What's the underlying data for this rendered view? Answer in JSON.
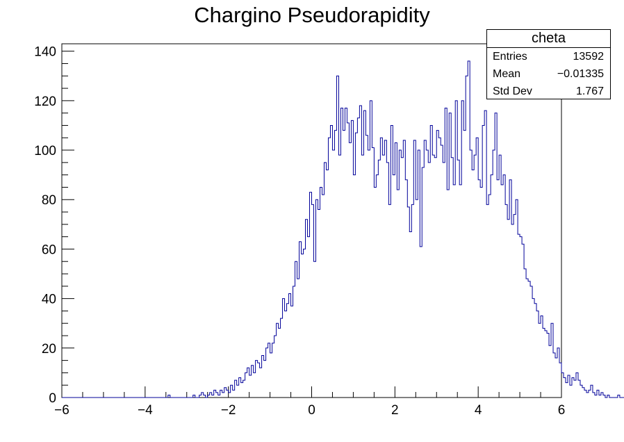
{
  "chart_data": {
    "type": "bar",
    "title": "Chargino Pseudorapidity",
    "xlabel": "",
    "ylabel": "",
    "xlim": [
      -6,
      6
    ],
    "ylim": [
      0,
      143
    ],
    "xticks": [
      "−6",
      "−4",
      "−2",
      "0",
      "2",
      "4",
      "6"
    ],
    "yticks": [
      "0",
      "20",
      "40",
      "60",
      "80",
      "100",
      "120",
      "140"
    ],
    "bin_low": -6,
    "bin_width": 0.05,
    "line_color": "#000099",
    "values": [
      0,
      0,
      0,
      0,
      0,
      0,
      0,
      0,
      0,
      0,
      0,
      0,
      0,
      0,
      0,
      0,
      0,
      0,
      0,
      0,
      0,
      0,
      0,
      0,
      0,
      0,
      0,
      0,
      0,
      0,
      0,
      0,
      0,
      0,
      0,
      0,
      0,
      0,
      0,
      0,
      0,
      0,
      0,
      0,
      0,
      0,
      0,
      0,
      0,
      0,
      0,
      1,
      0,
      0,
      0,
      0,
      0,
      0,
      0,
      0,
      0,
      0,
      0,
      1,
      0,
      0,
      1,
      2,
      1,
      0,
      1,
      2,
      1,
      3,
      2,
      1,
      3,
      2,
      4,
      3,
      2,
      5,
      3,
      7,
      5,
      8,
      6,
      7,
      10,
      12,
      9,
      13,
      10,
      15,
      14,
      12,
      17,
      15,
      20,
      22,
      18,
      22,
      25,
      30,
      28,
      32,
      40,
      35,
      38,
      42,
      37,
      45,
      55,
      48,
      63,
      58,
      60,
      72,
      65,
      83,
      78,
      55,
      80,
      76,
      85,
      82,
      95,
      92,
      105,
      110,
      100,
      108,
      130,
      98,
      117,
      108,
      117,
      111,
      103,
      112,
      90,
      107,
      113,
      118,
      98,
      116,
      106,
      100,
      120,
      101,
      85,
      90,
      96,
      105,
      98,
      104,
      95,
      78,
      110,
      90,
      103,
      84,
      100,
      97,
      104,
      88,
      77,
      67,
      78,
      104,
      80,
      100,
      61,
      93,
      104,
      100,
      95,
      110,
      98,
      97,
      108,
      105,
      102,
      95,
      117,
      84,
      115,
      97,
      86,
      120,
      96,
      86,
      120,
      108,
      130,
      136,
      100,
      92,
      98,
      105,
      88,
      85,
      110,
      116,
      78,
      82,
      90,
      100,
      115,
      88,
      98,
      86,
      90,
      78,
      72,
      88,
      70,
      74,
      80,
      66,
      65,
      62,
      52,
      48,
      47,
      45,
      40,
      38,
      35,
      30,
      33,
      28,
      27,
      26,
      21,
      30,
      18,
      16,
      20,
      14,
      10,
      8,
      6,
      9,
      5,
      8,
      7,
      10,
      7,
      5,
      4,
      3,
      2,
      3,
      5,
      2,
      1,
      3,
      1,
      2,
      1,
      0,
      1,
      0,
      0,
      0,
      0,
      1,
      0,
      0,
      0,
      0,
      0,
      1,
      0,
      0,
      0,
      0,
      0,
      1,
      0,
      0,
      0,
      0,
      0,
      0,
      0,
      0,
      0,
      0,
      0,
      0,
      0,
      0,
      0,
      0,
      0,
      0,
      0,
      0
    ],
    "stats": {
      "name": "cheta",
      "rows": [
        {
          "label": "Entries",
          "value": "13592"
        },
        {
          "label": "Mean",
          "value": "−0.01335"
        },
        {
          "label": "Std Dev",
          "value": "1.767"
        }
      ]
    }
  }
}
